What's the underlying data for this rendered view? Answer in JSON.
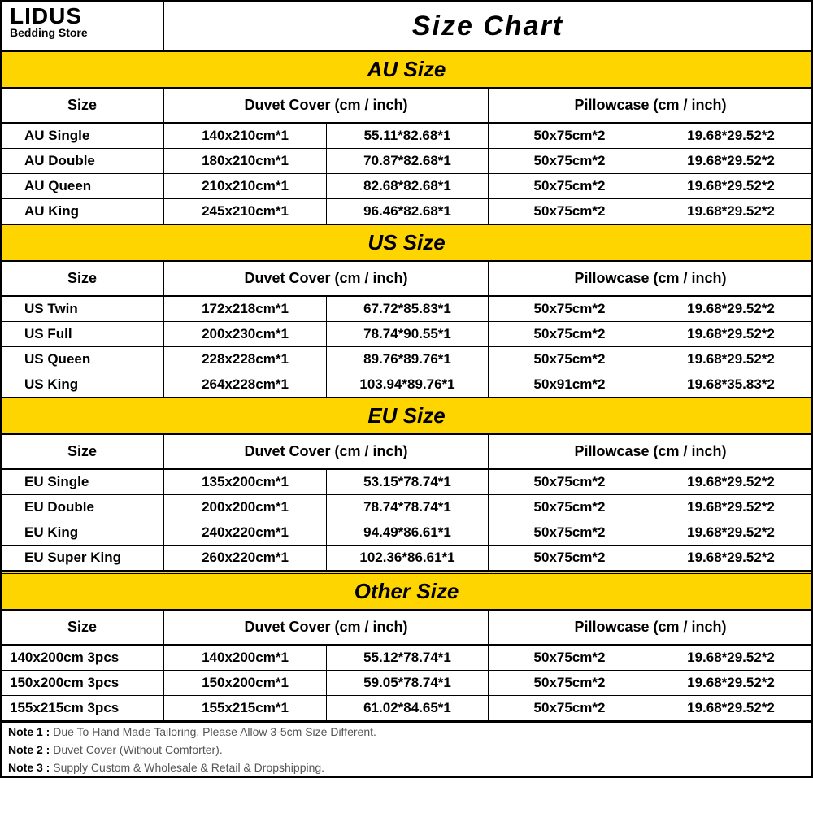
{
  "brand": {
    "name": "LIDUS",
    "subtitle": "Bedding Store"
  },
  "main_title": "Size   Chart",
  "colors": {
    "section_bg": "#ffd500",
    "border": "#000000",
    "bg": "#ffffff",
    "note_text": "#555555"
  },
  "column_headers": {
    "size": "Size",
    "duvet": "Duvet Cover (cm / inch)",
    "pillow": "Pillowcase (cm / inch)"
  },
  "sections": [
    {
      "title": "AU  Size",
      "name_class": "c1",
      "rows": [
        {
          "name": "AU Single",
          "duvet_cm": "140x210cm*1",
          "duvet_in": "55.11*82.68*1",
          "pillow_cm": "50x75cm*2",
          "pillow_in": "19.68*29.52*2"
        },
        {
          "name": "AU Double",
          "duvet_cm": "180x210cm*1",
          "duvet_in": "70.87*82.68*1",
          "pillow_cm": "50x75cm*2",
          "pillow_in": "19.68*29.52*2"
        },
        {
          "name": "AU Queen",
          "duvet_cm": "210x210cm*1",
          "duvet_in": "82.68*82.68*1",
          "pillow_cm": "50x75cm*2",
          "pillow_in": "19.68*29.52*2"
        },
        {
          "name": "AU King",
          "duvet_cm": "245x210cm*1",
          "duvet_in": "96.46*82.68*1",
          "pillow_cm": "50x75cm*2",
          "pillow_in": "19.68*29.52*2"
        }
      ]
    },
    {
      "title": "US  Size",
      "name_class": "c1",
      "rows": [
        {
          "name": "US Twin",
          "duvet_cm": "172x218cm*1",
          "duvet_in": "67.72*85.83*1",
          "pillow_cm": "50x75cm*2",
          "pillow_in": "19.68*29.52*2"
        },
        {
          "name": "US Full",
          "duvet_cm": "200x230cm*1",
          "duvet_in": "78.74*90.55*1",
          "pillow_cm": "50x75cm*2",
          "pillow_in": "19.68*29.52*2"
        },
        {
          "name": "US Queen",
          "duvet_cm": "228x228cm*1",
          "duvet_in": "89.76*89.76*1",
          "pillow_cm": "50x75cm*2",
          "pillow_in": "19.68*29.52*2"
        },
        {
          "name": "US King",
          "duvet_cm": "264x228cm*1",
          "duvet_in": "103.94*89.76*1",
          "pillow_cm": "50x91cm*2",
          "pillow_in": "19.68*35.83*2"
        }
      ]
    },
    {
      "title": "EU  Size",
      "name_class": "c1",
      "rows": [
        {
          "name": "EU Single",
          "duvet_cm": "135x200cm*1",
          "duvet_in": "53.15*78.74*1",
          "pillow_cm": "50x75cm*2",
          "pillow_in": "19.68*29.52*2"
        },
        {
          "name": "EU Double",
          "duvet_cm": "200x200cm*1",
          "duvet_in": "78.74*78.74*1",
          "pillow_cm": "50x75cm*2",
          "pillow_in": "19.68*29.52*2"
        },
        {
          "name": "EU King",
          "duvet_cm": "240x220cm*1",
          "duvet_in": "94.49*86.61*1",
          "pillow_cm": "50x75cm*2",
          "pillow_in": "19.68*29.52*2"
        },
        {
          "name": "EU Super King",
          "duvet_cm": "260x220cm*1",
          "duvet_in": "102.36*86.61*1",
          "pillow_cm": "50x75cm*2",
          "pillow_in": "19.68*29.52*2"
        }
      ]
    },
    {
      "title": "Other  Size",
      "name_class": "c1b",
      "double_sep": true,
      "rows": [
        {
          "name": "140x200cm 3pcs",
          "duvet_cm": "140x200cm*1",
          "duvet_in": "55.12*78.74*1",
          "pillow_cm": "50x75cm*2",
          "pillow_in": "19.68*29.52*2"
        },
        {
          "name": "150x200cm 3pcs",
          "duvet_cm": "150x200cm*1",
          "duvet_in": "59.05*78.74*1",
          "pillow_cm": "50x75cm*2",
          "pillow_in": "19.68*29.52*2"
        },
        {
          "name": "155x215cm 3pcs",
          "duvet_cm": "155x215cm*1",
          "duvet_in": "61.02*84.65*1",
          "pillow_cm": "50x75cm*2",
          "pillow_in": "19.68*29.52*2"
        }
      ]
    }
  ],
  "notes": [
    {
      "label": "Note 1 :",
      "text": " Due To Hand Made Tailoring, Please Allow 3-5cm Size Different."
    },
    {
      "label": "Note 2 :",
      "text": " Duvet Cover (Without Comforter)."
    },
    {
      "label": "Note 3 :",
      "text": " Supply Custom & Wholesale & Retail & Dropshipping."
    }
  ]
}
